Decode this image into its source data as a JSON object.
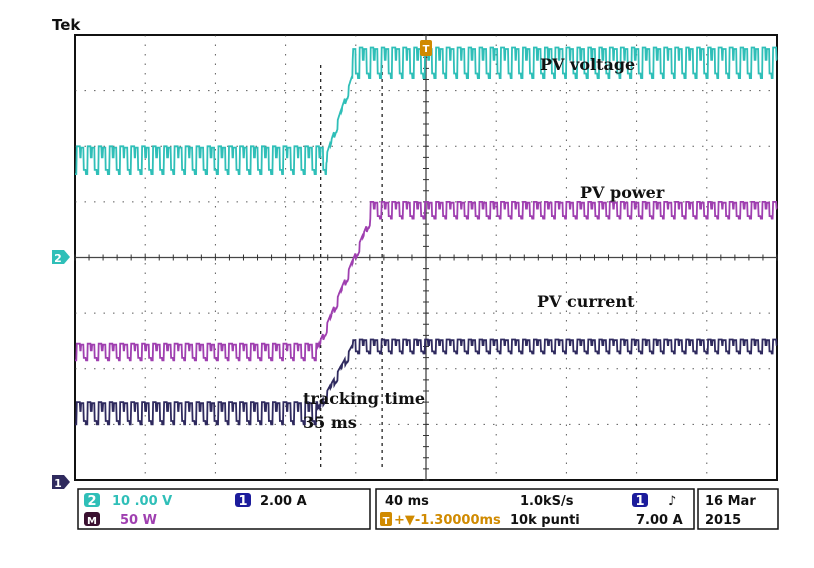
{
  "brand": "Tek",
  "colors": {
    "ch1": "#2f2a5e",
    "ch2": "#2fbfb8",
    "math": "#9f3fb0",
    "trigger": "#d08a00",
    "grid": "#333333",
    "border": "#111111"
  },
  "markers": {
    "ch2": "2",
    "ch1": "1",
    "trigger": "T"
  },
  "annotations": {
    "tracking_time": "tracking time",
    "tracking_value": "35 ms"
  },
  "readout": {
    "ch2_num": "2",
    "ch2_scale": "10 .00 V",
    "ch1_num": "1",
    "ch1_scale": "2.00 A",
    "math_num": "M",
    "math_scale": "50 W",
    "timebase": "40 ms",
    "sample_rate": "1.0kS/s",
    "trigger_pos_marker": "T",
    "trigger_pos": "+▼-1.30000ms",
    "record_length": "10k punti",
    "trigger_source": "1",
    "trigger_slope": "♪",
    "trigger_level": "7.00 A",
    "date_line1": "16 Mar",
    "date_line2": "2015"
  },
  "chart_data": {
    "type": "line",
    "title": "",
    "xlabel": "",
    "ylabel": "",
    "x_unit": "ms",
    "time_per_div_ms": 40,
    "xlim_ms": [
      -200,
      200
    ],
    "grid": true,
    "series": [
      {
        "name": "PV voltage",
        "key": "ch2",
        "segments": [
          {
            "t_start_ms": -200,
            "t_end_ms": -57,
            "level_div": 1.75,
            "ripple_div": 0.5,
            "period_ms": 6.2
          },
          {
            "t_start_ms": -57,
            "t_end_ms": -42,
            "level_div_from": 1.75,
            "level_div_to": 3.2
          },
          {
            "t_start_ms": -42,
            "t_end_ms": 200,
            "level_div": 3.5,
            "ripple_div": 0.55,
            "period_ms": 6.2
          }
        ]
      },
      {
        "name": "PV power",
        "key": "math",
        "segments": [
          {
            "t_start_ms": -200,
            "t_end_ms": -62,
            "level_div": -1.7,
            "ripple_div": 0.3,
            "period_ms": 6.2
          },
          {
            "t_start_ms": -62,
            "t_end_ms": -32,
            "level_div_from": -1.7,
            "level_div_to": 0.65
          },
          {
            "t_start_ms": -32,
            "t_end_ms": 200,
            "level_div": 0.85,
            "ripple_div": 0.3,
            "period_ms": 6.2
          }
        ]
      },
      {
        "name": "PV current",
        "key": "ch1",
        "segments": [
          {
            "t_start_ms": -200,
            "t_end_ms": -62,
            "level_div": -2.8,
            "ripple_div": 0.4,
            "period_ms": 6.2
          },
          {
            "t_start_ms": -62,
            "t_end_ms": -42,
            "level_div_from": -2.8,
            "level_div_to": -1.65
          },
          {
            "t_start_ms": -42,
            "t_end_ms": 200,
            "level_div": -1.6,
            "ripple_div": 0.25,
            "period_ms": 6.2
          }
        ]
      }
    ],
    "cursors_ms": [
      -60,
      -25
    ],
    "trigger_time_ms": 0
  }
}
